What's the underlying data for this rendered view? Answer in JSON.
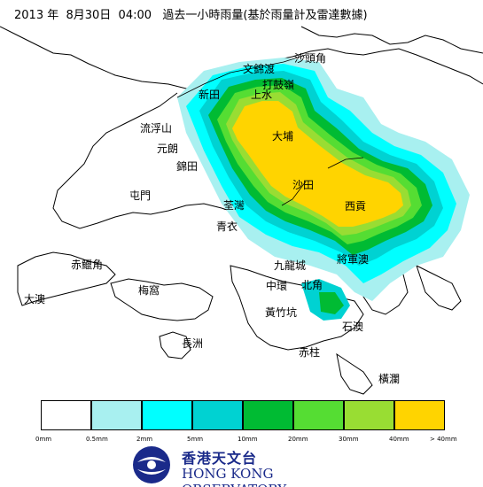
{
  "title": "2013 年  8月30日  04:00   過去一小時雨量(基於雨量計及雷達數據)",
  "places": [
    {
      "name": "文錦渡"
    },
    {
      "name": "沙頭角"
    },
    {
      "name": "打鼓嶺"
    },
    {
      "name": "新田"
    },
    {
      "name": "上水"
    },
    {
      "name": "流浮山"
    },
    {
      "name": "元朗"
    },
    {
      "name": "大埔"
    },
    {
      "name": "錦田"
    },
    {
      "name": "屯門"
    },
    {
      "name": "沙田"
    },
    {
      "name": "荃灣"
    },
    {
      "name": "西貢"
    },
    {
      "name": "青衣"
    },
    {
      "name": "赤鱲角"
    },
    {
      "name": "九龍城"
    },
    {
      "name": "將軍澳"
    },
    {
      "name": "大澳"
    },
    {
      "name": "梅窩"
    },
    {
      "name": "中環"
    },
    {
      "name": "北角"
    },
    {
      "name": "黃竹坑"
    },
    {
      "name": "長洲"
    },
    {
      "name": "石澳"
    },
    {
      "name": "赤柱"
    },
    {
      "name": "橫瀾"
    }
  ],
  "legend": {
    "colors": [
      "#ffffff",
      "#a8f0f0",
      "#00ffff",
      "#00d2d2",
      "#00bb33",
      "#55dd33",
      "#99dd33",
      "#ffd400"
    ],
    "ticks": [
      "0mm",
      "0.5mm",
      "2mm",
      "5mm",
      "10mm",
      "20mm",
      "30mm",
      "40mm",
      "> 40mm"
    ]
  },
  "logo": {
    "chinese": "香港天文台",
    "english": "HONG KONG OBSERVATORY"
  }
}
